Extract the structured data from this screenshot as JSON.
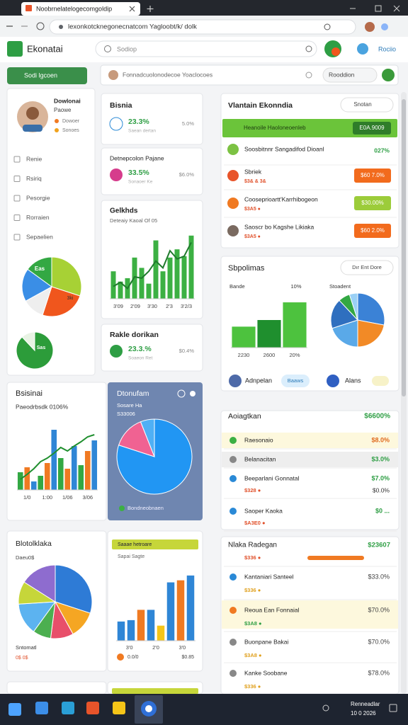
{
  "browser": {
    "tab": "Noobrnelatelogecomgoldip",
    "url": "lexonkotcknegonecnatcom Yagloobt/k/ dolk"
  },
  "header": {
    "brand": "Ekonatai",
    "search": "Sodiop",
    "action": "Rociio"
  },
  "toolbar": {
    "button": "Sodi lgcoen",
    "search": "Fonnadcuolonodecoe Yoaclocoes",
    "action": "Rooddion"
  },
  "sidebar": {
    "name": "Dowlonai",
    "role": "Paowe",
    "tags": [
      "Dowoer",
      "Sonoes"
    ],
    "menu": [
      "Renie",
      "Rsiriq",
      "Pesorgie",
      "Rorraien",
      "Sepaelien"
    ],
    "pie": {
      "values": [
        30,
        25,
        12,
        18,
        15
      ],
      "colors": [
        "#a7d135",
        "#f0561d",
        "#eeeeee",
        "#3a8ee6",
        "#33a843"
      ],
      "labels": [
        "Eas",
        "3ki"
      ]
    },
    "donut": {
      "values": [
        88,
        12
      ],
      "colors": [
        "#2c9c3a",
        "#e8f3e4"
      ],
      "label": "Sas"
    }
  },
  "stat_cards": [
    {
      "title": "Bisnia",
      "value": "23.3%",
      "side": "5.0%",
      "sub": "Saean dertan"
    },
    {
      "title": "Detnepcolon Pajane",
      "value": "33.5%",
      "side": "$6.0%",
      "sub": "Sonaoer Ke"
    },
    {
      "title": "Rakle dorikan",
      "value": "23.3.%",
      "side": "$0.4%",
      "sub": "Soaeon Ret"
    }
  ],
  "trend_card": {
    "title": "Gelkhds",
    "subtitle": "Deteaiy Kaoal Of 05",
    "labels": [
      "3'09",
      "2'09",
      "3'30",
      "2'3",
      "3'2/3"
    ],
    "chart": {
      "ylim": [
        0,
        100
      ],
      "values": [
        40,
        25,
        30,
        60,
        45,
        22,
        85,
        40,
        60,
        72,
        62,
        92
      ],
      "colors": [
        "#3cb043",
        "#3cb043",
        "#3cb043",
        "#3cb043",
        "#3cb043",
        "#3cb043",
        "#3cb043",
        "#3cb043",
        "#3cb043",
        "#3cb043",
        "#3cb043",
        "#3cb043"
      ],
      "line": {
        "color": "#1f7a2c",
        "values": [
          18,
          24,
          15,
          32,
          30,
          40,
          55,
          45,
          70,
          58,
          62,
          82
        ]
      }
    }
  },
  "list_card": {
    "title": "Vlantain Ekonndia",
    "filter": "Snotan",
    "banner": "Heanoile Haoloneoenleb",
    "banner_badge": "E0A.9009",
    "rows": [
      {
        "title": "Soosbitnnr Sangadifod Dioanl",
        "sub": "",
        "badge": "027%"
      },
      {
        "title": "Sbriek",
        "sub": "$3& & 3&",
        "badge": "$60 7.0%"
      },
      {
        "title": "Cooseprioartt'Karrhibogeon",
        "sub": "$3A5 ●",
        "badge": "$30.00%"
      },
      {
        "title": "Saoscr bo Kagshe Likiaka",
        "sub": "$3A5 ●",
        "badge": "$60 2.0%"
      }
    ]
  },
  "summary_card": {
    "title": "Sbpolimas",
    "filter": "Dır Ent Dore",
    "label_left": "Bande",
    "label_mid": "10%",
    "label_right": "Stoadent",
    "labels": [
      "2230",
      "2600",
      "20%"
    ],
    "chart": {
      "ylim": [
        0,
        100
      ],
      "values": [
        38,
        50,
        82
      ],
      "colors": [
        "#4dc23e",
        "#1f8f2e",
        "#4dc23e"
      ]
    },
    "pie": {
      "values": [
        28,
        22,
        20,
        18,
        7,
        5
      ],
      "colors": [
        "#3b82d6",
        "#f28a26",
        "#5aa9e8",
        "#2f6fbf",
        "#33a843",
        "#9ad0f5"
      ]
    },
    "legend": [
      "Adnpelan",
      "Baaws",
      "Alans"
    ]
  },
  "bar_card": {
    "title": "Bsisinai",
    "subtitle": "Paeodrbsdk 0106%",
    "labels": [
      "1/0",
      "1:00",
      "1/06",
      "3/06"
    ],
    "chart": {
      "ylim": [
        0,
        100
      ],
      "values": [
        25,
        32,
        12,
        20,
        38,
        85,
        45,
        30,
        62,
        35,
        55,
        70
      ],
      "colors": [
        "#33a843",
        "#f07a22",
        "#2f86d6",
        "#33a843",
        "#f07a22",
        "#2f86d6",
        "#33a843",
        "#f07a22",
        "#2f86d6",
        "#33a843",
        "#f07a22",
        "#2f86d6"
      ],
      "line": {
        "color": "#1f8f2e",
        "values": [
          15,
          22,
          30,
          40,
          45,
          52,
          60,
          55,
          62,
          68,
          75,
          78
        ]
      }
    }
  },
  "blue_card": {
    "title": "Dtonufam",
    "subtitle": "Sosare Ha",
    "value": "S33006",
    "footer": "Bondneobnaen",
    "pie": {
      "values": [
        80,
        14,
        6
      ],
      "colors": [
        "#2196f3",
        "#f06292",
        "#4fb0f5"
      ]
    }
  },
  "pie_card": {
    "title": "Blotolklaka",
    "subtitle": "Daeu0$",
    "footer": "Sntomatl",
    "footer_value": "0$ 0$",
    "pie": {
      "values": [
        30,
        12,
        10,
        8,
        14,
        10,
        16
      ],
      "colors": [
        "#2e7bd6",
        "#f5a623",
        "#e84f6a",
        "#4caf50",
        "#5cb3f0",
        "#c6d63a",
        "#8e6ccf"
      ]
    }
  },
  "column_card": {
    "banner": "Saaae hetroare",
    "subtitle": "Sapai Sagte",
    "labels": [
      "3'0",
      "2'0",
      "3'0"
    ],
    "footer": "0.0/0",
    "footer_value": "$0.85",
    "chart": {
      "ylim": [
        0,
        100
      ],
      "values": [
        28,
        30,
        45,
        45,
        22,
        85,
        88,
        95
      ],
      "colors": [
        "#2f86d6",
        "#2f86d6",
        "#f07a22",
        "#2f86d6",
        "#f5c518",
        "#2f86d6",
        "#f07a22",
        "#2f86d6"
      ]
    }
  },
  "table_a": {
    "title": "Aoiagtkan",
    "total": "$6600%",
    "rows": [
      {
        "title": "Raesonaio",
        "value": "$8.0%"
      },
      {
        "title": "Belanacitan",
        "value": "$3.0%"
      },
      {
        "title": "Beeparlani Gonnatal",
        "value": "$7.0%",
        "sub": "$328 ●",
        "sub_value": "$0.0%"
      },
      {
        "title": "Saoper Kaoka",
        "value": "$0 ...",
        "sub": "$A3E0 ●"
      }
    ]
  },
  "table_b": {
    "title": "Nlaka Radegan",
    "total": "$23607",
    "sub": "$336 ●",
    "rows": [
      {
        "title": "Kantaniari Santeel",
        "value": "$33.0%",
        "sub": "$336 ●"
      },
      {
        "title": "Reoua Ean Fonnaial",
        "value": "$70.0%",
        "sub": "$3A8 ●"
      },
      {
        "title": "Buonpane Bakai",
        "value": "$70.0%",
        "sub": "$3A8 ●"
      },
      {
        "title": "Kanke Soobane",
        "value": "$78.0%",
        "sub": "$336 ●"
      }
    ]
  },
  "taskbar": {
    "clock": "Renneadlar",
    "date": "10 0 2026"
  }
}
